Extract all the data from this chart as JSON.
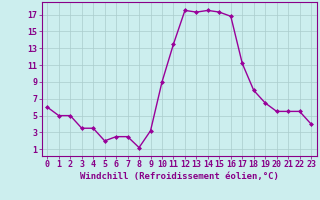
{
  "x": [
    0,
    1,
    2,
    3,
    4,
    5,
    6,
    7,
    8,
    9,
    10,
    11,
    12,
    13,
    14,
    15,
    16,
    17,
    18,
    19,
    20,
    21,
    22,
    23
  ],
  "y": [
    6,
    5,
    5,
    3.5,
    3.5,
    2,
    2.5,
    2.5,
    1.2,
    3.2,
    9,
    13.5,
    17.5,
    17.3,
    17.5,
    17.3,
    16.8,
    11.2,
    8,
    6.5,
    5.5,
    5.5,
    5.5,
    4
  ],
  "line_color": "#990099",
  "marker": "D",
  "marker_size": 2,
  "bg_color": "#cceeee",
  "grid_color": "#aacccc",
  "xlabel": "Windchill (Refroidissement éolien,°C)",
  "xlabel_fontsize": 6.5,
  "xtick_labels": [
    "0",
    "1",
    "2",
    "3",
    "4",
    "5",
    "6",
    "7",
    "8",
    "9",
    "10",
    "11",
    "12",
    "13",
    "14",
    "15",
    "16",
    "17",
    "18",
    "19",
    "20",
    "21",
    "22",
    "23"
  ],
  "xticks": [
    0,
    1,
    2,
    3,
    4,
    5,
    6,
    7,
    8,
    9,
    10,
    11,
    12,
    13,
    14,
    15,
    16,
    17,
    18,
    19,
    20,
    21,
    22,
    23
  ],
  "yticks": [
    1,
    3,
    5,
    7,
    9,
    11,
    13,
    15,
    17
  ],
  "ylim": [
    0.2,
    18.5
  ],
  "xlim": [
    -0.5,
    23.5
  ],
  "tick_color": "#880088",
  "tick_labelsize": 6,
  "spine_color": "#880088",
  "linewidth": 1.0
}
